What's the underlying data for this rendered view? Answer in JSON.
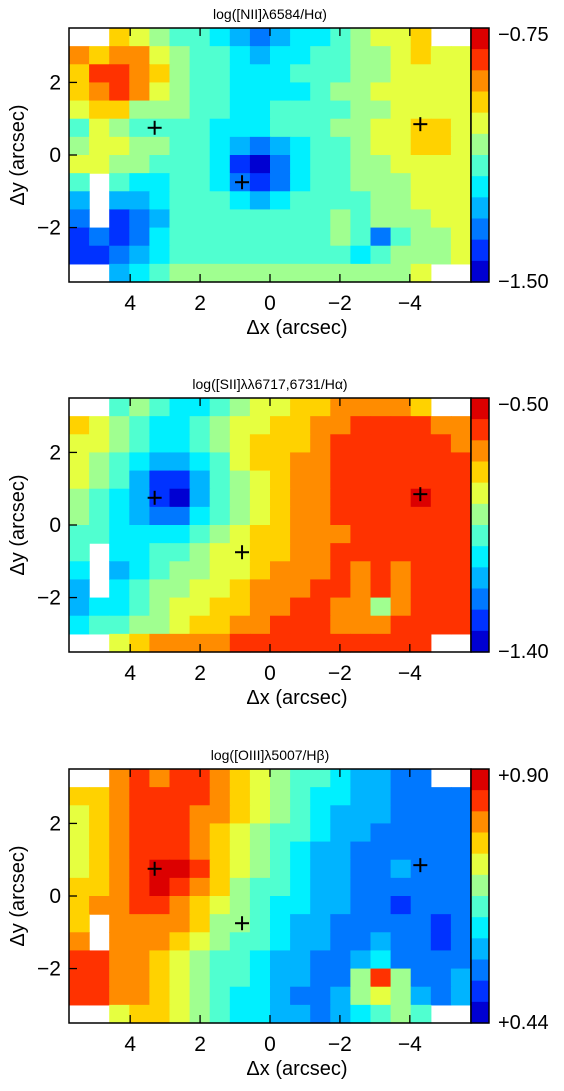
{
  "chart_data": [
    {
      "type": "heatmap",
      "title": "log([NII]λ6584/Hα)",
      "xlabel": "Δx (arcsec)",
      "ylabel": "Δy (arcsec)",
      "xlim": [
        5.75,
        -5.75
      ],
      "ylim": [
        -3.5,
        3.5
      ],
      "xticks": [
        "4",
        "2",
        "0",
        "−2",
        "−4"
      ],
      "yticks": [
        "2",
        "0",
        "−2"
      ],
      "colorbar": {
        "max_label": "−0.75",
        "min_label": "−1.50",
        "vmax": -0.75,
        "vmin": -1.5
      },
      "markers": [
        {
          "dx": 3.3,
          "dy": 0.75
        },
        {
          "dx": 0.8,
          "dy": -0.75
        },
        {
          "dx": -4.3,
          "dy": 0.85
        }
      ],
      "grid": [
        [
          null,
          null,
          0.73,
          0.64,
          0.55,
          0.45,
          0.45,
          0.36,
          0.27,
          0.18,
          0.27,
          0.36,
          0.36,
          0.45,
          0.55,
          0.64,
          0.64,
          0.73,
          null,
          null
        ],
        [
          0.82,
          0.73,
          0.82,
          0.82,
          0.64,
          0.55,
          0.45,
          0.45,
          0.36,
          0.27,
          0.36,
          0.36,
          0.45,
          0.45,
          0.55,
          0.55,
          0.64,
          0.73,
          0.64,
          0.64
        ],
        [
          0.73,
          0.91,
          0.91,
          0.82,
          0.73,
          0.55,
          0.45,
          0.45,
          0.36,
          0.36,
          0.36,
          0.45,
          0.45,
          0.45,
          0.55,
          0.55,
          0.64,
          0.64,
          0.64,
          0.64
        ],
        [
          0.73,
          0.82,
          0.91,
          0.82,
          0.64,
          0.55,
          0.45,
          0.45,
          0.36,
          0.36,
          0.36,
          0.36,
          0.45,
          0.55,
          0.55,
          0.64,
          0.64,
          0.64,
          0.64,
          0.64
        ],
        [
          0.64,
          0.73,
          0.73,
          0.55,
          0.55,
          0.55,
          0.45,
          0.45,
          0.36,
          0.36,
          0.45,
          0.45,
          0.45,
          0.45,
          0.55,
          0.55,
          0.64,
          0.64,
          0.64,
          0.64
        ],
        [
          0.45,
          0.64,
          0.55,
          0.45,
          0.45,
          0.45,
          0.45,
          0.36,
          0.36,
          0.36,
          0.45,
          0.45,
          0.45,
          0.55,
          0.55,
          0.64,
          0.64,
          0.73,
          0.73,
          0.64
        ],
        [
          0.55,
          0.64,
          0.64,
          0.55,
          0.55,
          0.45,
          0.45,
          0.36,
          0.27,
          0.18,
          0.27,
          0.36,
          0.45,
          0.45,
          0.55,
          0.64,
          0.64,
          0.73,
          0.73,
          0.64
        ],
        [
          0.64,
          0.64,
          0.55,
          0.55,
          0.45,
          0.45,
          0.45,
          0.36,
          0.09,
          0.0,
          0.18,
          0.36,
          0.45,
          0.45,
          0.55,
          0.55,
          0.64,
          0.64,
          0.64,
          0.64
        ],
        [
          0.45,
          null,
          0.45,
          0.36,
          0.36,
          0.45,
          0.45,
          0.36,
          0.18,
          0.09,
          0.18,
          0.36,
          0.45,
          0.45,
          0.55,
          0.55,
          0.55,
          0.64,
          0.64,
          0.64
        ],
        [
          0.27,
          null,
          0.27,
          0.27,
          0.36,
          0.45,
          0.45,
          0.45,
          0.36,
          0.27,
          0.36,
          0.45,
          0.45,
          0.45,
          0.45,
          0.55,
          0.55,
          0.64,
          0.64,
          0.64
        ],
        [
          0.18,
          null,
          0.09,
          0.18,
          0.27,
          0.45,
          0.45,
          0.45,
          0.45,
          0.45,
          0.45,
          0.45,
          0.45,
          0.55,
          0.45,
          0.55,
          0.55,
          0.55,
          0.64,
          0.64
        ],
        [
          0.09,
          0.18,
          0.09,
          0.18,
          0.36,
          0.45,
          0.45,
          0.45,
          0.45,
          0.45,
          0.45,
          0.45,
          0.45,
          0.55,
          0.45,
          0.18,
          0.45,
          0.55,
          0.55,
          0.64
        ],
        [
          0.09,
          0.09,
          0.18,
          0.27,
          0.36,
          0.45,
          0.45,
          0.45,
          0.45,
          0.45,
          0.45,
          0.45,
          0.45,
          0.45,
          0.36,
          0.45,
          0.55,
          0.55,
          0.55,
          0.64
        ],
        [
          null,
          null,
          0.27,
          0.36,
          0.45,
          0.55,
          0.55,
          0.55,
          0.55,
          0.55,
          0.55,
          0.55,
          0.55,
          0.55,
          0.55,
          0.55,
          0.55,
          0.64,
          null,
          null
        ]
      ]
    },
    {
      "type": "heatmap",
      "title": "log([SII]λλ6717,6731/Hα)",
      "xlabel": "Δx (arcsec)",
      "ylabel": "Δy (arcsec)",
      "xlim": [
        5.75,
        -5.75
      ],
      "ylim": [
        -3.5,
        3.5
      ],
      "xticks": [
        "4",
        "2",
        "0",
        "−2",
        "−4"
      ],
      "yticks": [
        "2",
        "0",
        "−2"
      ],
      "colorbar": {
        "max_label": "−0.50",
        "min_label": "−1.40",
        "vmax": -0.5,
        "vmin": -1.4
      },
      "markers": [
        {
          "dx": 3.3,
          "dy": 0.75
        },
        {
          "dx": 0.8,
          "dy": -0.75
        },
        {
          "dx": -4.3,
          "dy": 0.85
        }
      ],
      "grid": [
        [
          null,
          null,
          0.45,
          0.55,
          0.45,
          0.36,
          0.36,
          0.45,
          0.55,
          0.64,
          0.64,
          0.73,
          0.73,
          0.82,
          0.82,
          0.82,
          0.82,
          0.73,
          null,
          null
        ],
        [
          0.73,
          0.64,
          0.55,
          0.45,
          0.36,
          0.36,
          0.45,
          0.55,
          0.64,
          0.64,
          0.73,
          0.73,
          0.82,
          0.82,
          0.91,
          0.91,
          0.91,
          0.91,
          0.82,
          0.82
        ],
        [
          0.64,
          0.64,
          0.55,
          0.45,
          0.36,
          0.36,
          0.45,
          0.55,
          0.64,
          0.73,
          0.73,
          0.73,
          0.82,
          0.91,
          0.91,
          0.91,
          0.91,
          0.91,
          0.91,
          0.82
        ],
        [
          0.64,
          0.55,
          0.45,
          0.36,
          0.27,
          0.27,
          0.36,
          0.45,
          0.64,
          0.73,
          0.73,
          0.82,
          0.82,
          0.91,
          0.91,
          0.91,
          0.91,
          0.91,
          0.91,
          0.91
        ],
        [
          0.64,
          0.55,
          0.45,
          0.27,
          0.09,
          0.09,
          0.27,
          0.45,
          0.55,
          0.64,
          0.73,
          0.82,
          0.82,
          0.91,
          0.91,
          0.91,
          0.91,
          0.91,
          0.91,
          0.91
        ],
        [
          0.55,
          0.45,
          0.36,
          0.27,
          0.09,
          0.0,
          0.27,
          0.45,
          0.55,
          0.64,
          0.73,
          0.82,
          0.82,
          0.91,
          0.91,
          0.91,
          0.91,
          1.0,
          0.91,
          0.91
        ],
        [
          0.55,
          0.45,
          0.36,
          0.27,
          0.18,
          0.18,
          0.36,
          0.45,
          0.55,
          0.64,
          0.73,
          0.82,
          0.82,
          0.91,
          0.91,
          0.91,
          0.91,
          0.91,
          0.91,
          0.91
        ],
        [
          0.45,
          0.45,
          0.36,
          0.36,
          0.36,
          0.36,
          0.45,
          0.55,
          0.64,
          0.73,
          0.73,
          0.82,
          0.82,
          0.82,
          0.91,
          0.91,
          0.91,
          0.91,
          0.91,
          0.91
        ],
        [
          0.45,
          null,
          0.36,
          0.36,
          0.45,
          0.45,
          0.55,
          0.64,
          0.64,
          0.73,
          0.73,
          0.82,
          0.82,
          0.91,
          0.91,
          0.91,
          0.91,
          0.91,
          0.91,
          0.91
        ],
        [
          0.36,
          null,
          0.27,
          0.36,
          0.45,
          0.55,
          0.55,
          0.64,
          0.64,
          0.73,
          0.82,
          0.82,
          0.82,
          0.91,
          0.82,
          0.91,
          0.82,
          0.91,
          0.91,
          0.91
        ],
        [
          0.27,
          null,
          0.36,
          0.45,
          0.55,
          0.55,
          0.64,
          0.64,
          0.73,
          0.82,
          0.82,
          0.82,
          0.91,
          0.91,
          0.82,
          0.91,
          0.82,
          0.91,
          0.91,
          0.91
        ],
        [
          0.27,
          0.36,
          0.36,
          0.45,
          0.55,
          0.64,
          0.64,
          0.73,
          0.73,
          0.82,
          0.82,
          0.91,
          0.91,
          0.82,
          0.82,
          0.55,
          0.82,
          0.91,
          0.91,
          0.91
        ],
        [
          0.36,
          0.45,
          0.45,
          0.55,
          0.55,
          0.64,
          0.73,
          0.73,
          0.82,
          0.82,
          0.91,
          0.91,
          0.91,
          0.82,
          0.82,
          0.82,
          0.91,
          0.91,
          0.91,
          0.91
        ],
        [
          null,
          null,
          0.64,
          0.73,
          0.82,
          0.82,
          0.82,
          0.82,
          0.91,
          0.91,
          0.91,
          0.91,
          0.91,
          0.91,
          0.91,
          0.91,
          0.91,
          0.91,
          null,
          null
        ]
      ]
    },
    {
      "type": "heatmap",
      "title": "log([OIII]λ5007/Hβ)",
      "xlabel": "Δx (arcsec)",
      "ylabel": "Δy (arcsec)",
      "xlim": [
        5.75,
        -5.75
      ],
      "ylim": [
        -3.5,
        3.5
      ],
      "xticks": [
        "4",
        "2",
        "0",
        "−2",
        "−4"
      ],
      "yticks": [
        "2",
        "0",
        "−2"
      ],
      "colorbar": {
        "max_label": "+0.90",
        "min_label": "+0.44",
        "vmax": 0.9,
        "vmin": 0.44
      },
      "markers": [
        {
          "dx": 3.3,
          "dy": 0.75
        },
        {
          "dx": 0.8,
          "dy": -0.75
        },
        {
          "dx": -4.3,
          "dy": 0.85
        }
      ],
      "grid": [
        [
          null,
          null,
          0.82,
          0.91,
          0.82,
          0.91,
          0.91,
          0.82,
          0.73,
          0.64,
          0.55,
          0.45,
          0.45,
          0.36,
          0.27,
          0.27,
          0.18,
          0.18,
          null,
          null
        ],
        [
          0.73,
          0.73,
          0.82,
          0.91,
          0.91,
          0.91,
          0.91,
          0.82,
          0.73,
          0.64,
          0.55,
          0.45,
          0.36,
          0.36,
          0.27,
          0.27,
          0.18,
          0.18,
          0.18,
          0.18
        ],
        [
          0.64,
          0.73,
          0.82,
          0.91,
          0.91,
          0.91,
          0.82,
          0.82,
          0.73,
          0.64,
          0.55,
          0.45,
          0.36,
          0.27,
          0.27,
          0.27,
          0.18,
          0.18,
          0.18,
          0.18
        ],
        [
          0.64,
          0.73,
          0.82,
          0.91,
          0.91,
          0.91,
          0.82,
          0.73,
          0.64,
          0.55,
          0.45,
          0.45,
          0.36,
          0.27,
          0.27,
          0.18,
          0.18,
          0.18,
          0.18,
          0.18
        ],
        [
          0.64,
          0.73,
          0.82,
          0.91,
          0.91,
          0.91,
          0.82,
          0.73,
          0.64,
          0.55,
          0.45,
          0.36,
          0.27,
          0.27,
          0.18,
          0.18,
          0.18,
          0.18,
          0.18,
          0.18
        ],
        [
          0.64,
          0.73,
          0.82,
          0.91,
          1.0,
          1.0,
          0.91,
          0.73,
          0.64,
          0.55,
          0.45,
          0.36,
          0.27,
          0.27,
          0.18,
          0.18,
          0.27,
          0.18,
          0.18,
          0.18
        ],
        [
          0.73,
          0.73,
          0.82,
          0.91,
          1.0,
          0.91,
          0.82,
          0.73,
          0.55,
          0.45,
          0.45,
          0.36,
          0.27,
          0.27,
          0.18,
          0.18,
          0.18,
          0.18,
          0.18,
          0.18
        ],
        [
          0.73,
          0.82,
          0.82,
          0.91,
          0.91,
          0.82,
          0.73,
          0.64,
          0.55,
          0.45,
          0.36,
          0.36,
          0.27,
          0.27,
          0.18,
          0.18,
          0.09,
          0.18,
          0.18,
          0.18
        ],
        [
          0.73,
          null,
          0.82,
          0.82,
          0.82,
          0.82,
          0.73,
          0.55,
          0.55,
          0.45,
          0.36,
          0.27,
          0.27,
          0.18,
          0.18,
          0.18,
          0.18,
          0.18,
          0.09,
          0.18
        ],
        [
          0.82,
          null,
          0.82,
          0.82,
          0.82,
          0.73,
          0.64,
          0.55,
          0.45,
          0.45,
          0.36,
          0.27,
          0.27,
          0.18,
          0.18,
          0.27,
          0.18,
          0.18,
          0.09,
          0.18
        ],
        [
          0.91,
          0.91,
          0.82,
          0.82,
          0.73,
          0.64,
          0.55,
          0.45,
          0.45,
          0.36,
          0.27,
          0.27,
          0.18,
          0.18,
          0.27,
          0.36,
          0.18,
          0.18,
          0.18,
          0.18
        ],
        [
          0.91,
          0.91,
          0.82,
          0.82,
          0.73,
          0.64,
          0.55,
          0.45,
          0.45,
          0.36,
          0.27,
          0.27,
          0.18,
          0.18,
          0.55,
          0.91,
          0.55,
          0.18,
          0.18,
          0.27
        ],
        [
          0.91,
          0.91,
          0.82,
          0.82,
          0.73,
          0.64,
          0.55,
          0.45,
          0.36,
          0.36,
          0.27,
          0.18,
          0.18,
          0.27,
          0.55,
          0.64,
          0.55,
          0.27,
          0.18,
          0.27
        ],
        [
          null,
          null,
          0.64,
          0.73,
          0.73,
          0.64,
          0.55,
          0.45,
          0.36,
          0.36,
          0.27,
          0.27,
          0.18,
          0.27,
          0.36,
          0.45,
          0.55,
          0.45,
          null,
          null
        ]
      ]
    }
  ]
}
